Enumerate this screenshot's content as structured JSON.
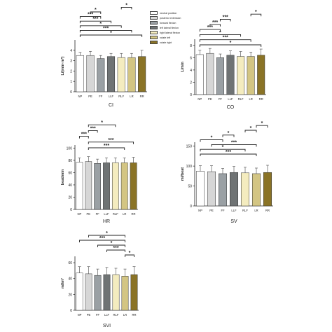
{
  "legend": [
    {
      "label": "neutral position",
      "color": "#ffffff"
    },
    {
      "label": "posterior extension",
      "color": "#d6d6d6"
    },
    {
      "label": "forward flexion",
      "color": "#9aa0a4"
    },
    {
      "label": "left lateral flexion",
      "color": "#6f7374"
    },
    {
      "label": "right lateral flexion",
      "color": "#f4ecbf"
    },
    {
      "label": "rotate left",
      "color": "#d3c583"
    },
    {
      "label": "rotate right",
      "color": "#8a7326"
    }
  ],
  "colors": [
    "#ffffff",
    "#d6d6d6",
    "#9aa0a4",
    "#6f7374",
    "#f4ecbf",
    "#d3c583",
    "#8a7326"
  ],
  "chart_data": [
    {
      "id": "ci",
      "type": "bar",
      "categories": [
        "NP",
        "PE",
        "FF",
        "LLF",
        "RLF",
        "LR",
        "RR"
      ],
      "values": [
        3.5,
        3.5,
        3.2,
        3.4,
        3.3,
        3.3,
        3.4
      ],
      "errors": [
        0.3,
        0.4,
        0.3,
        0.3,
        0.4,
        0.4,
        0.6
      ],
      "ylim": [
        0,
        5
      ],
      "yticks": [
        0,
        1,
        2,
        3,
        4
      ],
      "xlabel": "CI",
      "ylabel": "L/(min·m²)",
      "brackets": [
        {
          "from": 0,
          "to": 6,
          "label": "*"
        },
        {
          "from": 0,
          "to": 5,
          "label": "***"
        },
        {
          "from": 0,
          "to": 4,
          "label": "*"
        },
        {
          "from": 0,
          "to": 3,
          "label": "***"
        },
        {
          "from": 0,
          "to": 2,
          "label": "***"
        },
        {
          "from": 1,
          "to": 2,
          "label": "*"
        },
        {
          "from": 4,
          "to": 5,
          "label": "*"
        }
      ]
    },
    {
      "id": "co",
      "type": "bar",
      "categories": [
        "NP",
        "PE",
        "FF",
        "LLF",
        "RLF",
        "LR",
        "RR"
      ],
      "values": [
        6.5,
        6.7,
        6.0,
        6.4,
        6.2,
        6.2,
        6.4
      ],
      "errors": [
        0.7,
        0.8,
        0.6,
        0.7,
        0.8,
        0.7,
        1.0
      ],
      "ylim": [
        0,
        9
      ],
      "yticks": [
        0,
        2,
        4,
        6,
        8
      ],
      "xlabel": "CO",
      "ylabel": "L/min",
      "brackets": [
        {
          "from": 0,
          "to": 6,
          "label": "*"
        },
        {
          "from": 0,
          "to": 5,
          "label": "***"
        },
        {
          "from": 0,
          "to": 4,
          "label": "*"
        },
        {
          "from": 0,
          "to": 2,
          "label": "***"
        },
        {
          "from": 1,
          "to": 2,
          "label": "***"
        },
        {
          "from": 2,
          "to": 3,
          "label": "***"
        },
        {
          "from": 5,
          "to": 6,
          "label": "*"
        }
      ]
    },
    {
      "id": "hr",
      "type": "bar",
      "categories": [
        "NP",
        "PE",
        "FF",
        "LLF",
        "RLF",
        "LR",
        "RR"
      ],
      "values": [
        77,
        78,
        75,
        76,
        76,
        76,
        76
      ],
      "errors": [
        7,
        8,
        7,
        8,
        8,
        8,
        9
      ],
      "ylim": [
        0,
        105
      ],
      "yticks": [
        0,
        20,
        40,
        60,
        80,
        100
      ],
      "xlabel": "HR",
      "ylabel": "beat/min",
      "brackets": [
        {
          "from": 1,
          "to": 5,
          "label": "***"
        },
        {
          "from": 1,
          "to": 6,
          "label": "***"
        },
        {
          "from": 0,
          "to": 1,
          "label": "***"
        },
        {
          "from": 1,
          "to": 2,
          "label": "***"
        },
        {
          "from": 1,
          "to": 4,
          "label": "*"
        }
      ]
    },
    {
      "id": "sv",
      "type": "bar",
      "categories": [
        "NP",
        "PE",
        "FF",
        "LLF",
        "RLF",
        "LR",
        "RR"
      ],
      "values": [
        87,
        86,
        81,
        84,
        83,
        81,
        84
      ],
      "errors": [
        14,
        15,
        13,
        15,
        14,
        14,
        18
      ],
      "ylim": [
        0,
        160
      ],
      "yticks": [
        0,
        50,
        100,
        150
      ],
      "xlabel": "SV",
      "ylabel": "ml/beat",
      "brackets": [
        {
          "from": 0,
          "to": 5,
          "label": "***"
        },
        {
          "from": 0,
          "to": 4,
          "label": "*"
        },
        {
          "from": 1,
          "to": 5,
          "label": "***"
        },
        {
          "from": 0,
          "to": 2,
          "label": "*"
        },
        {
          "from": 2,
          "to": 3,
          "label": "*"
        },
        {
          "from": 4,
          "to": 5,
          "label": "*"
        },
        {
          "from": 5,
          "to": 6,
          "label": "*"
        }
      ]
    },
    {
      "id": "svi",
      "type": "bar",
      "categories": [
        "NP",
        "PE",
        "FF",
        "LLF",
        "RLF",
        "LR",
        "RR"
      ],
      "values": [
        47,
        46,
        44,
        45,
        45,
        43,
        45
      ],
      "errors": [
        8,
        9,
        8,
        9,
        8,
        9,
        10
      ],
      "ylim": [
        0,
        68
      ],
      "yticks": [
        0,
        20,
        40,
        60
      ],
      "xlabel": "SVI",
      "ylabel": "ml/m²",
      "brackets": [
        {
          "from": 5,
          "to": 6,
          "label": "*"
        },
        {
          "from": 3,
          "to": 5,
          "label": "***"
        },
        {
          "from": 2,
          "to": 5,
          "label": "*"
        },
        {
          "from": 0,
          "to": 5,
          "label": "***"
        },
        {
          "from": 1,
          "to": 5,
          "label": "*"
        }
      ]
    }
  ]
}
